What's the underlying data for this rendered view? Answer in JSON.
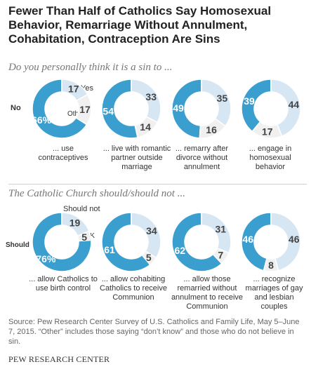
{
  "title": "Fewer Than Half of Catholics Say Homosexual Behavior, Remarriage Without Annulment, Cohabitation, Contraception Are Sins",
  "section1": {
    "subtitle": "Do you personally think it is a sin to ...",
    "label_no": "No",
    "label_yes": "Yes",
    "label_other": "Other"
  },
  "section2": {
    "subtitle": "The Catholic Church should/should not ...",
    "label_should": "Should",
    "label_should_not": "Should not",
    "label_dk": "DK"
  },
  "source": "Source: Pew Research Center Survey of U.S. Catholics and Family Life, May 5–June 7, 2015. “Other” includes those saying “don’t know” and those who do not believe in sin.",
  "footer": "PEW RESEARCH CENTER",
  "colors": {
    "dark": "#3a9fce",
    "light": "#d6e6f3",
    "other": "#f0f0f0"
  },
  "chart_data": [
    {
      "type": "pie",
      "group": "Do you personally think it is a sin to ...",
      "caption": "... use contraceptives",
      "slices": [
        {
          "label": "No",
          "value": 66,
          "display": "66%"
        },
        {
          "label": "Yes",
          "value": 17,
          "display": "17"
        },
        {
          "label": "Other",
          "value": 17,
          "display": "17"
        }
      ]
    },
    {
      "type": "pie",
      "group": "Do you personally think it is a sin to ...",
      "caption": "... live with romantic partner outside marriage",
      "slices": [
        {
          "label": "No",
          "value": 54,
          "display": "54"
        },
        {
          "label": "Yes",
          "value": 33,
          "display": "33"
        },
        {
          "label": "Other",
          "value": 14,
          "display": "14"
        }
      ]
    },
    {
      "type": "pie",
      "group": "Do you personally think it is a sin to ...",
      "caption": "... remarry after divorce without annulment",
      "slices": [
        {
          "label": "No",
          "value": 49,
          "display": "49"
        },
        {
          "label": "Yes",
          "value": 35,
          "display": "35"
        },
        {
          "label": "Other",
          "value": 16,
          "display": "16"
        }
      ]
    },
    {
      "type": "pie",
      "group": "Do you personally think it is a sin to ...",
      "caption": "... engage in homosexual behavior",
      "slices": [
        {
          "label": "No",
          "value": 39,
          "display": "39"
        },
        {
          "label": "Yes",
          "value": 44,
          "display": "44"
        },
        {
          "label": "Other",
          "value": 17,
          "display": "17"
        }
      ]
    },
    {
      "type": "pie",
      "group": "The Catholic Church should/should not ...",
      "caption": "... allow Catholics to use birth control",
      "slices": [
        {
          "label": "Should",
          "value": 76,
          "display": "76%"
        },
        {
          "label": "Should not",
          "value": 19,
          "display": "19"
        },
        {
          "label": "DK",
          "value": 5,
          "display": "5"
        }
      ]
    },
    {
      "type": "pie",
      "group": "The Catholic Church should/should not ...",
      "caption": "... allow cohabiting Catholics to receive Communion",
      "slices": [
        {
          "label": "Should",
          "value": 61,
          "display": "61"
        },
        {
          "label": "Should not",
          "value": 34,
          "display": "34"
        },
        {
          "label": "DK",
          "value": 5,
          "display": "5"
        }
      ]
    },
    {
      "type": "pie",
      "group": "The Catholic Church should/should not ...",
      "caption": "... allow those remarried without annulment to receive Communion",
      "slices": [
        {
          "label": "Should",
          "value": 62,
          "display": "62"
        },
        {
          "label": "Should not",
          "value": 31,
          "display": "31"
        },
        {
          "label": "DK",
          "value": 7,
          "display": "7"
        }
      ]
    },
    {
      "type": "pie",
      "group": "The Catholic Church should/should not ...",
      "caption": "... recognize marriages of gay and lesbian couples",
      "slices": [
        {
          "label": "Should",
          "value": 46,
          "display": "46"
        },
        {
          "label": "Should not",
          "value": 46,
          "display": "46"
        },
        {
          "label": "DK",
          "value": 8,
          "display": "8"
        }
      ]
    }
  ]
}
